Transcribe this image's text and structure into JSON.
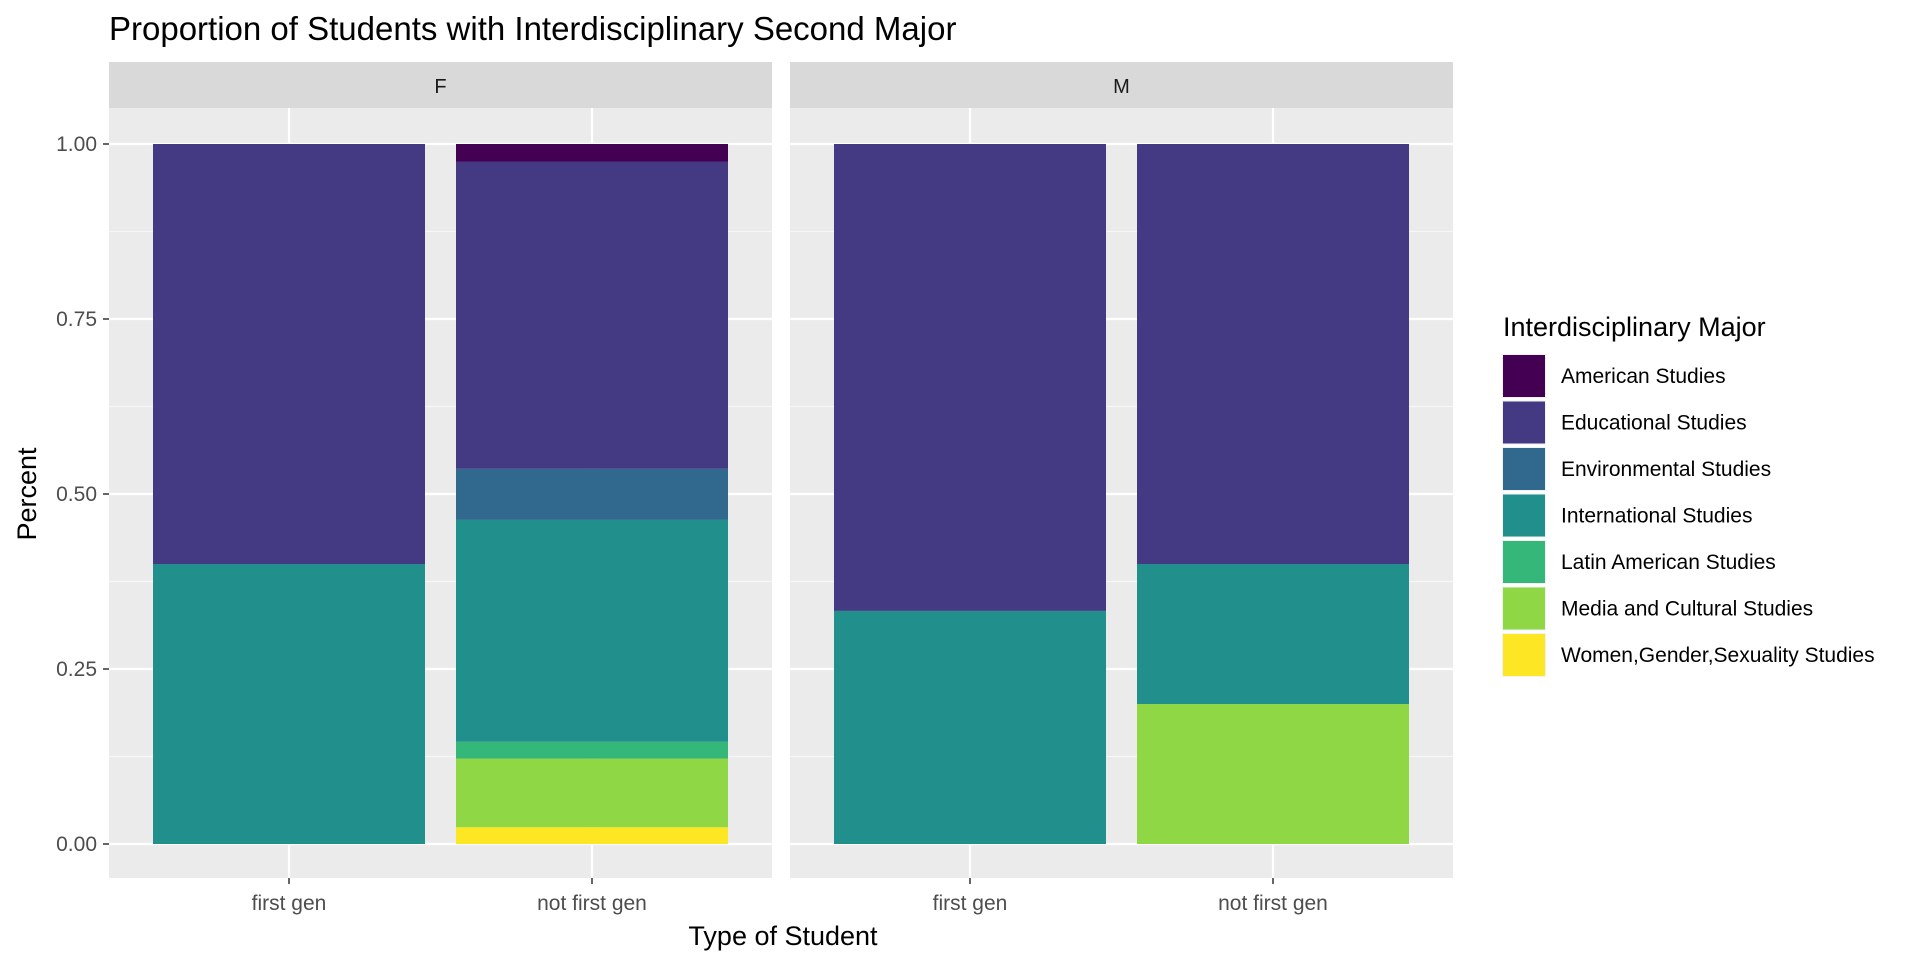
{
  "chart_data": {
    "type": "bar",
    "stacked": true,
    "title": "Proportion of Students with Interdisciplinary Second Major",
    "xlabel": "Type of Student",
    "ylabel": "Percent",
    "ylim": [
      0,
      1
    ],
    "yticks": [
      {
        "value": 0,
        "label": "0.00"
      },
      {
        "value": 0.25,
        "label": "0.25"
      },
      {
        "value": 0.5,
        "label": "0.50"
      },
      {
        "value": 0.75,
        "label": "0.75"
      },
      {
        "value": 1,
        "label": "1.00"
      }
    ],
    "grid": true,
    "legend": {
      "title": "Interdisciplinary Major",
      "position": "right",
      "entries": [
        {
          "name": "American Studies",
          "color": "#440154"
        },
        {
          "name": "Educational Studies",
          "color": "#443A83"
        },
        {
          "name": "Environmental Studies",
          "color": "#31688E"
        },
        {
          "name": "International Studies",
          "color": "#21908C"
        },
        {
          "name": "Latin American Studies",
          "color": "#35B779"
        },
        {
          "name": "Media and Cultural Studies",
          "color": "#8FD744"
        },
        {
          "name": "Women,Gender,Sexuality Studies",
          "color": "#FDE725"
        }
      ]
    },
    "facets": [
      {
        "label": "F",
        "bars": [
          {
            "category": "first gen",
            "segments": [
              {
                "name": "International Studies",
                "value": 0.4
              },
              {
                "name": "Educational Studies",
                "value": 0.6
              }
            ]
          },
          {
            "category": "not first gen",
            "segments": [
              {
                "name": "Women,Gender,Sexuality Studies",
                "value": 0.024
              },
              {
                "name": "Media and Cultural Studies",
                "value": 0.098
              },
              {
                "name": "Latin American Studies",
                "value": 0.024
              },
              {
                "name": "International Studies",
                "value": 0.317
              },
              {
                "name": "Environmental Studies",
                "value": 0.073
              },
              {
                "name": "Educational Studies",
                "value": 0.439
              },
              {
                "name": "American Studies",
                "value": 0.025
              }
            ]
          }
        ]
      },
      {
        "label": "M",
        "bars": [
          {
            "category": "first gen",
            "segments": [
              {
                "name": "International Studies",
                "value": 0.333
              },
              {
                "name": "Educational Studies",
                "value": 0.667
              }
            ]
          },
          {
            "category": "not first gen",
            "segments": [
              {
                "name": "Media and Cultural Studies",
                "value": 0.2
              },
              {
                "name": "International Studies",
                "value": 0.2
              },
              {
                "name": "Educational Studies",
                "value": 0.6
              }
            ]
          }
        ]
      }
    ]
  }
}
